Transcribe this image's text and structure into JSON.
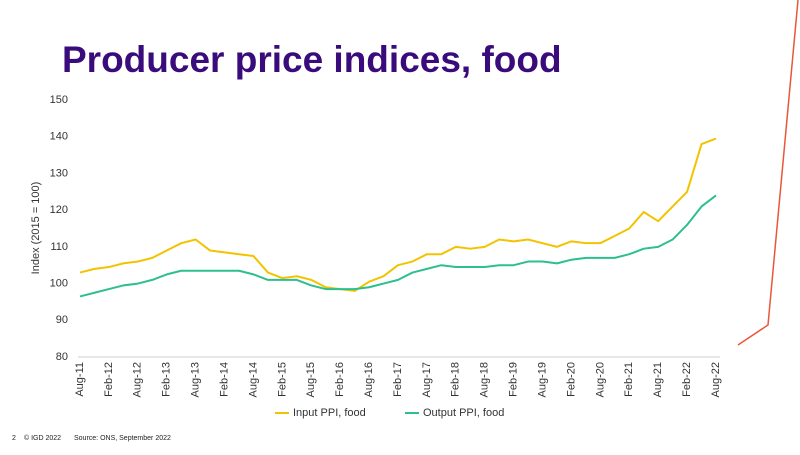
{
  "chart_data": {
    "type": "line",
    "title": "Producer price indices, food",
    "y_label": "Index (2015 = 100)",
    "categories": [
      "Aug-11",
      null,
      "Feb-12",
      null,
      "Aug-12",
      null,
      "Feb-13",
      null,
      "Aug-13",
      null,
      "Feb-14",
      null,
      "Aug-14",
      null,
      "Feb-15",
      null,
      "Aug-15",
      null,
      "Feb-16",
      null,
      "Aug-16",
      null,
      "Feb-17",
      null,
      "Aug-17",
      null,
      "Feb-18",
      null,
      "Aug-18",
      null,
      "Feb-19",
      null,
      "Aug-19",
      null,
      "Feb-20",
      null,
      "Aug-20",
      null,
      "Feb-21",
      null,
      "Aug-21",
      null,
      "Feb-22",
      null,
      "Aug-22"
    ],
    "series": [
      {
        "name": "Input PPI, food",
        "color": "#f2c300",
        "values": [
          103,
          104,
          104.5,
          105.5,
          106,
          107,
          109,
          111,
          112,
          109,
          108.5,
          108,
          107.5,
          103,
          101.5,
          102,
          101,
          99,
          98.5,
          98,
          100.5,
          102,
          105,
          106,
          108,
          108,
          110,
          109.5,
          110,
          112,
          111.5,
          112,
          111,
          110,
          111.5,
          111,
          111,
          113,
          115,
          119.5,
          117,
          121,
          125,
          138,
          139.5
        ]
      },
      {
        "name": "Output PPI, food",
        "color": "#2dbf8f",
        "values": [
          96.5,
          97.5,
          98.5,
          99.5,
          100,
          101,
          102.5,
          103.5,
          103.5,
          103.5,
          103.5,
          103.5,
          102.5,
          101,
          101,
          101,
          99.5,
          98.5,
          98.5,
          98.5,
          99,
          100,
          101,
          103,
          104,
          105,
          104.5,
          104.5,
          104.5,
          105,
          105,
          106,
          106,
          105.5,
          106.5,
          107,
          107,
          107,
          108,
          109.5,
          110,
          112,
          116,
          121,
          124
        ]
      }
    ],
    "ylim": [
      80,
      150
    ],
    "yticks": [
      80,
      90,
      100,
      110,
      120,
      130,
      140,
      150
    ],
    "grid": false,
    "legend": "bottom"
  },
  "footer": {
    "page": "2",
    "copyright": "© IGD 2022",
    "source": "Source: ONS, September 2022"
  }
}
